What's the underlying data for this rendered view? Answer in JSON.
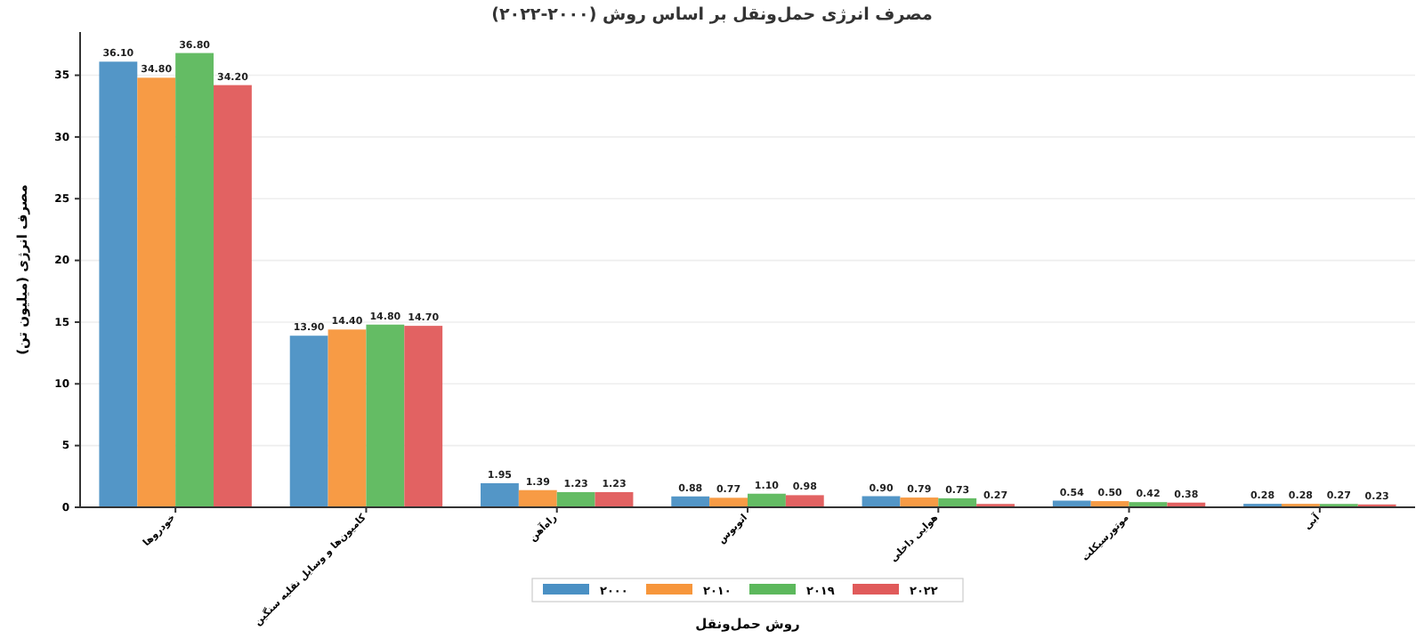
{
  "chart_data": {
    "type": "bar",
    "title": "مصرف انرژی حمل‌ونقل بر اساس روش (۲۰۰۰-۲۰۲۲)",
    "xlabel": "روش حمل‌ونقل",
    "ylabel": "مصرف انرژی (میلیون تن)",
    "categories": [
      "خودروها",
      "کامیون‌ها و وسایل نقلیه سنگین",
      "راه‌آهن",
      "اتوبوس",
      "هوایی داخلی",
      "موتورسیکلت",
      "آبی"
    ],
    "series": [
      {
        "name": "۲۰۰۰",
        "color": "#4a90c4",
        "values": [
          36.1,
          13.9,
          1.95,
          0.88,
          0.9,
          0.54,
          0.28
        ],
        "value_labels": [
          "36.10",
          "13.90",
          "1.95",
          "0.88",
          "0.90",
          "0.54",
          "0.28"
        ]
      },
      {
        "name": "۲۰۱۰",
        "color": "#f7963b",
        "values": [
          34.8,
          14.4,
          1.39,
          0.77,
          0.79,
          0.5,
          0.28
        ],
        "value_labels": [
          "34.80",
          "14.40",
          "1.39",
          "0.77",
          "0.79",
          "0.50",
          "0.28"
        ]
      },
      {
        "name": "۲۰۱۹",
        "color": "#5cb85c",
        "values": [
          36.8,
          14.8,
          1.23,
          1.1,
          0.73,
          0.42,
          0.27
        ],
        "value_labels": [
          "36.80",
          "14.80",
          "1.23",
          "1.10",
          "0.73",
          "0.42",
          "0.27"
        ]
      },
      {
        "name": "۲۰۲۲",
        "color": "#e05a5a",
        "values": [
          34.2,
          14.7,
          1.23,
          0.98,
          0.27,
          0.38,
          0.23
        ],
        "value_labels": [
          "34.20",
          "14.70",
          "1.23",
          "0.98",
          "0.27",
          "0.38",
          "0.23"
        ]
      }
    ],
    "ylim": [
      0,
      38.5
    ],
    "yticks": [
      0,
      5,
      10,
      15,
      20,
      25,
      30,
      35
    ],
    "grid": "y",
    "legend": "bottom"
  }
}
